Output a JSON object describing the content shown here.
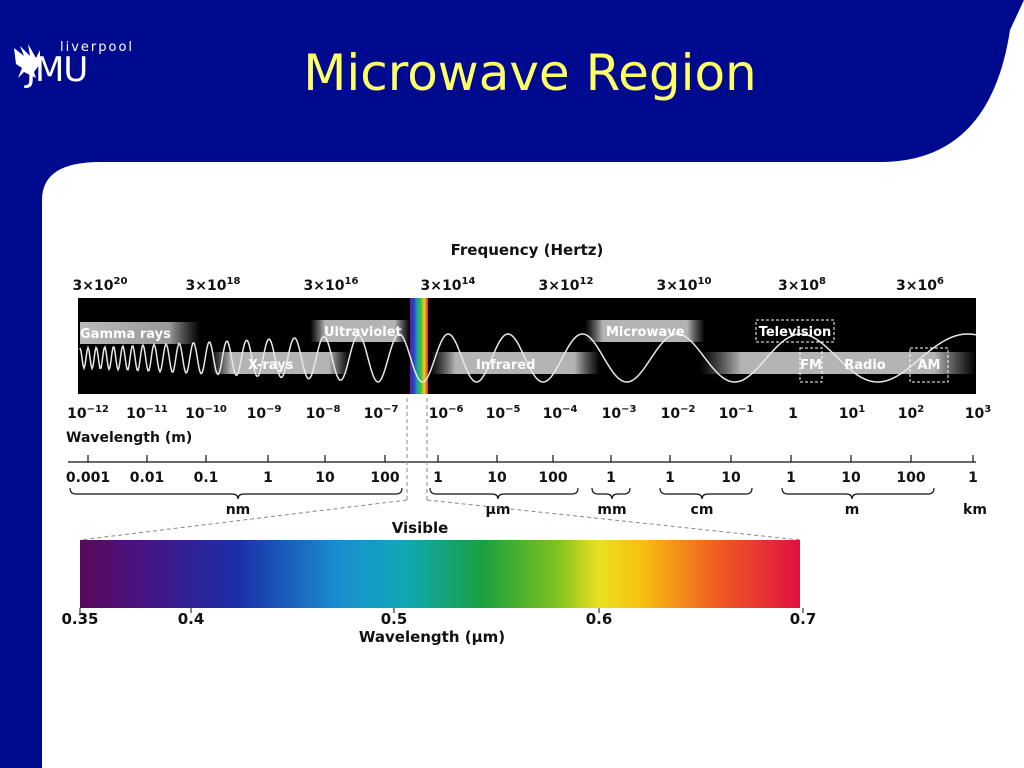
{
  "logo": {
    "small_text": "liverpool",
    "big_text": "JMU"
  },
  "title": "Microwave Region",
  "diagram": {
    "frequency_title": "Frequency (Hertz)",
    "frequency_ticks": [
      {
        "base": "3×10",
        "exp": "20"
      },
      {
        "base": "3×10",
        "exp": "18"
      },
      {
        "base": "3×10",
        "exp": "16"
      },
      {
        "base": "3×10",
        "exp": "14"
      },
      {
        "base": "3×10",
        "exp": "12"
      },
      {
        "base": "3×10",
        "exp": "10"
      },
      {
        "base": "3×10",
        "exp": "8"
      },
      {
        "base": "3×10",
        "exp": "6"
      }
    ],
    "bands": {
      "gamma": "Gamma rays",
      "xrays": "X-rays",
      "uv": "Ultraviolet",
      "infrared": "Infrared",
      "microwave": "Microwave",
      "television": "Television",
      "fm": "FM",
      "radio": "Radio",
      "am": "AM"
    },
    "wavelength_ticks": [
      {
        "base": "10",
        "exp": "−12"
      },
      {
        "base": "10",
        "exp": "−11"
      },
      {
        "base": "10",
        "exp": "−10"
      },
      {
        "base": "10",
        "exp": "−9"
      },
      {
        "base": "10",
        "exp": "−8"
      },
      {
        "base": "10",
        "exp": "−7"
      },
      {
        "base": "10",
        "exp": "−6"
      },
      {
        "base": "10",
        "exp": "−5"
      },
      {
        "base": "10",
        "exp": "−4"
      },
      {
        "base": "10",
        "exp": "−3"
      },
      {
        "base": "10",
        "exp": "−2"
      },
      {
        "base": "10",
        "exp": "−1"
      },
      {
        "base": "1",
        "exp": ""
      },
      {
        "base": "10",
        "exp": "1"
      },
      {
        "base": "10",
        "exp": "2"
      },
      {
        "base": "10",
        "exp": "3"
      }
    ],
    "wavelength_title": "Wavelength (m)",
    "unit_ticks": [
      "0.001",
      "0.01",
      "0.1",
      "1",
      "10",
      "100",
      "1",
      "10",
      "100",
      "1",
      "1",
      "10",
      "1",
      "10",
      "100",
      "1"
    ],
    "unit_labels": [
      "nm",
      "μm",
      "mm",
      "cm",
      "m",
      "km"
    ],
    "visible_title": "Visible",
    "visible_ticks": [
      "0.35",
      "0.4",
      "0.5",
      "0.6",
      "0.7"
    ],
    "visible_axis_label": "Wavelength (μm)"
  }
}
